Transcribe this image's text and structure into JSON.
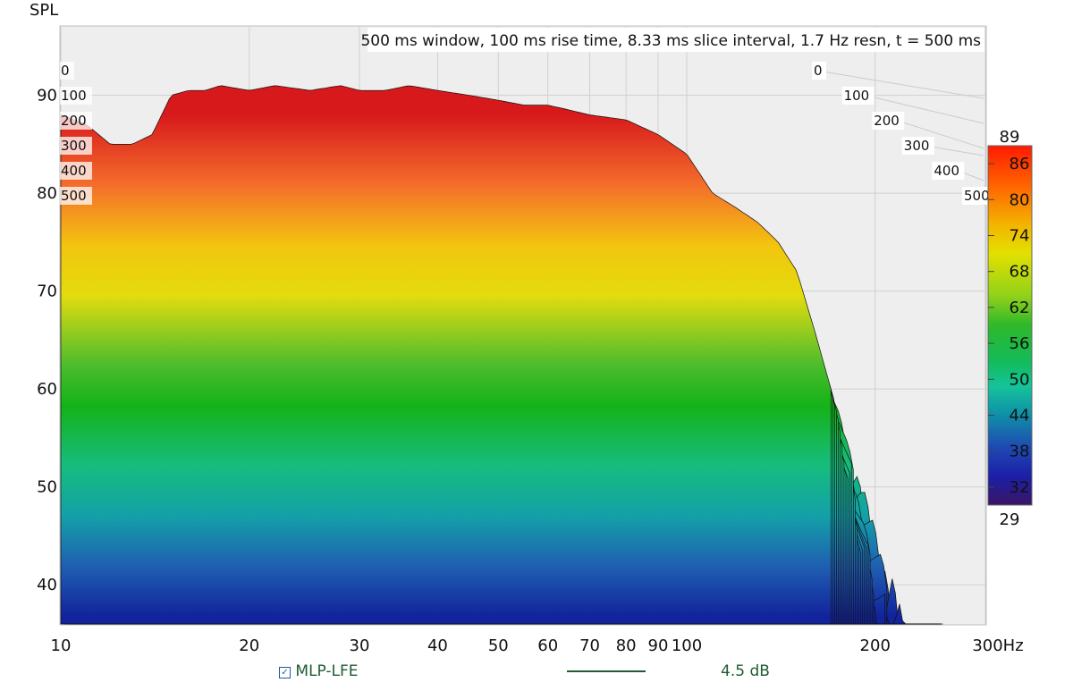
{
  "chart_data": {
    "type": "waterfall",
    "title": "500 ms window, 100 ms rise time, 8.33 ms slice interval, 1.7 Hz resn, t =  500 ms",
    "ylabel": "SPL",
    "xunit": "Hz",
    "xscale": "log",
    "xlim": [
      10,
      300
    ],
    "ylim": [
      36,
      97
    ],
    "yticks": [
      "40",
      "50",
      "60",
      "70",
      "80",
      "90"
    ],
    "xticks": [
      "10",
      "20",
      "30",
      "40",
      "50",
      "60",
      "70",
      "80",
      "90",
      "100",
      "200",
      "300Hz"
    ],
    "time_ticks_ms": [
      "0",
      "100",
      "200",
      "300",
      "400",
      "500"
    ],
    "time_range_ms": [
      0,
      500
    ],
    "colorbar": {
      "max_label": "89",
      "min_label": "29",
      "ticks": [
        "86",
        "80",
        "74",
        "68",
        "62",
        "56",
        "50",
        "44",
        "38",
        "32"
      ]
    },
    "front_response": {
      "freq_hz": [
        10,
        11,
        12,
        13,
        14,
        15,
        16,
        17,
        18,
        20,
        22,
        25,
        28,
        30,
        33,
        36,
        40,
        45,
        50,
        55,
        60,
        65,
        70,
        80,
        90,
        100,
        110,
        120,
        130,
        140,
        150,
        160,
        170
      ],
      "spl_db": [
        88,
        87,
        85,
        85,
        86,
        90,
        90.5,
        90.5,
        91,
        90.5,
        91,
        90.5,
        91,
        90.5,
        90.5,
        91,
        90.5,
        90,
        89.5,
        89,
        89,
        88.5,
        88,
        87.5,
        86,
        84,
        80,
        78.5,
        77,
        75,
        72,
        66,
        60
      ]
    },
    "series": [
      {
        "name": "MLP-LFE",
        "checked": true,
        "color": "#1e5c32",
        "smoothing": "4.5 dB"
      }
    ]
  }
}
